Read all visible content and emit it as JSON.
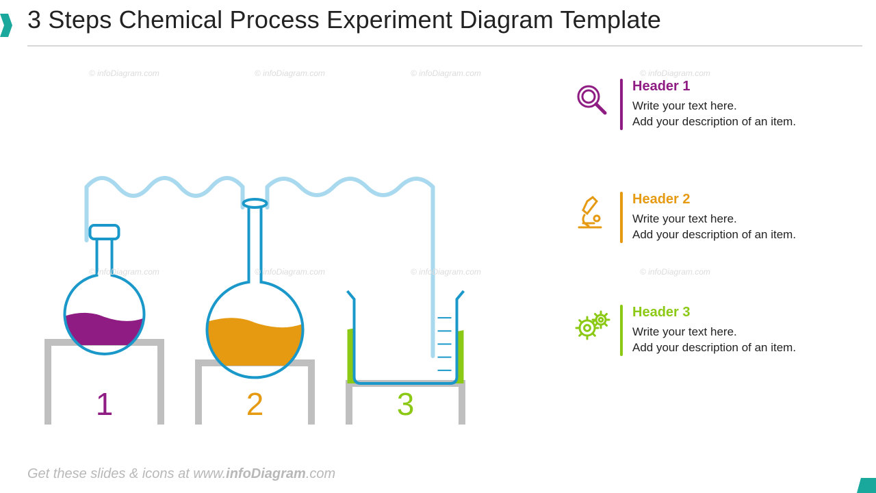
{
  "title": "3 Steps Chemical Process Experiment Diagram Template",
  "footer_prefix": "Get these slides & icons at www.",
  "footer_bold": "infoDiagram",
  "footer_suffix": ".com",
  "watermark": "© infoDiagram.com",
  "colors": {
    "purple": "#8e1c82",
    "orange": "#e59a12",
    "green": "#8cc915",
    "outline": "#1a98c9",
    "tube": "#a9d9ee",
    "stand": "#bfbfbf",
    "accent_teal": "#1aa79c"
  },
  "steps": [
    {
      "num": "1",
      "color": "#8e1c82",
      "header": "Header 1",
      "body": "Write your text here.\nAdd your description of an item.",
      "icon": "magnifier"
    },
    {
      "num": "2",
      "color": "#e59a12",
      "header": "Header 2",
      "body": "Write your text here.\nAdd your description of an item.",
      "icon": "microscope"
    },
    {
      "num": "3",
      "color": "#8cc915",
      "header": "Header 3",
      "body": "Write your text here.\nAdd your description of an item.",
      "icon": "gears"
    }
  ],
  "diagram": {
    "stand_heights": [
      120,
      90,
      60
    ],
    "stand_width": 165,
    "stand_gap": 55,
    "stand_stroke": 10,
    "number_fontsize": 46,
    "tube_stroke": 6,
    "flask_outline_stroke": 4,
    "fill_levels": [
      0.32,
      0.42,
      0.58
    ],
    "vessel_types": [
      "bulb-flask",
      "round-flask",
      "beaker"
    ]
  }
}
